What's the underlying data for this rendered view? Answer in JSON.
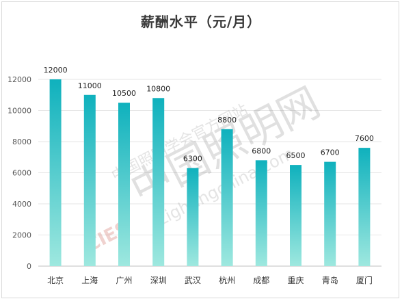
{
  "chart_data": {
    "type": "bar",
    "title": "薪酬水平（元/月）",
    "categories": [
      "北京",
      "上海",
      "广州",
      "深圳",
      "武汉",
      "杭州",
      "成都",
      "重庆",
      "青岛",
      "厦门"
    ],
    "values": [
      12000,
      11000,
      10500,
      10800,
      6300,
      8800,
      6800,
      6500,
      6700,
      7600
    ],
    "data_labels": [
      "12000",
      "11000",
      "10500",
      "10800",
      "6300",
      "8800",
      "6800",
      "6500",
      "6700",
      "7600"
    ],
    "ylim": [
      0,
      12000
    ],
    "yticks": [
      0,
      2000,
      4000,
      6000,
      8000,
      10000,
      12000
    ],
    "ytick_labels": [
      "0",
      "2000",
      "4000",
      "6000",
      "8000",
      "10000",
      "12000"
    ],
    "grid": true,
    "colors": {
      "bar_top": "#0fb1bd",
      "bar_bottom": "#9ee8df"
    }
  },
  "watermark": {
    "org": "中国照明学会官方网站",
    "brand": "中国照明网",
    "url": "Lightingchina.com",
    "logo": "CIES"
  }
}
